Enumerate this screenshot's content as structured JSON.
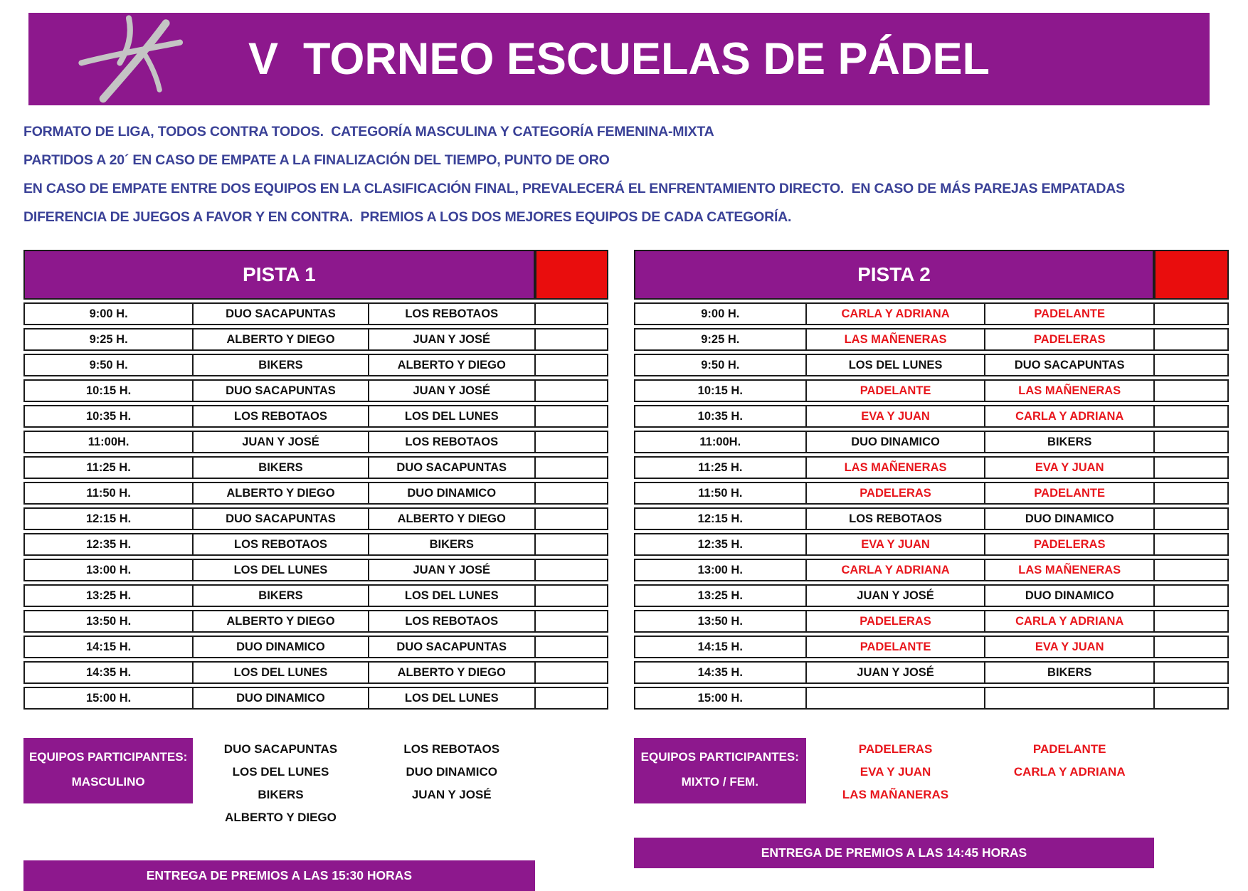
{
  "header": {
    "title": "V  TORNEO ESCUELAS DE PÁDEL",
    "logo_icon": "padel-player-logo"
  },
  "colors": {
    "banner_purple": "#8d188d",
    "marker_red": "#e90d0d",
    "rules_blue": "#3a4197",
    "team_red_text": "#e8161c",
    "team_black_text": "#111111",
    "logo_gray": "#c4c4c4"
  },
  "rules": [
    "FORMATO DE LIGA, TODOS CONTRA TODOS.  CATEGORÍA MASCULINA Y CATEGORÍA FEMENINA-MIXTA",
    "PARTIDOS A 20´ EN CASO DE EMPATE A LA FINALIZACIÓN DEL TIEMPO, PUNTO DE ORO",
    "EN CASO DE EMPATE ENTRE DOS EQUIPOS EN LA CLASIFICACIÓN FINAL, PREVALECERÁ EL ENFRENTAMIENTO DIRECTO.  EN CASO DE MÁS PAREJAS EMPATADAS",
    "DIFERENCIA DE JUEGOS A FAVOR Y EN CONTRA.  PREMIOS A LOS DOS MEJORES EQUIPOS DE CADA CATEGORÍA."
  ],
  "courts": [
    {
      "name": "PISTA 1",
      "rows": [
        {
          "time": "9:00 H.",
          "home": "DUO SACAPUNTAS",
          "away": "LOS REBOTAOS",
          "red": false
        },
        {
          "time": "9:25 H.",
          "home": "ALBERTO Y DIEGO",
          "away": "JUAN Y JOSÉ",
          "red": false
        },
        {
          "time": "9:50 H.",
          "home": "BIKERS",
          "away": "ALBERTO Y DIEGO",
          "red": false
        },
        {
          "time": "10:15 H.",
          "home": "DUO SACAPUNTAS",
          "away": "JUAN Y JOSÉ",
          "red": false
        },
        {
          "time": "10:35 H.",
          "home": "LOS REBOTAOS",
          "away": "LOS DEL LUNES",
          "red": false
        },
        {
          "time": "11:00H.",
          "home": "JUAN Y JOSÉ",
          "away": "LOS REBOTAOS",
          "red": false
        },
        {
          "time": "11:25 H.",
          "home": "BIKERS",
          "away": "DUO SACAPUNTAS",
          "red": false
        },
        {
          "time": "11:50 H.",
          "home": "ALBERTO Y DIEGO",
          "away": "DUO DINAMICO",
          "red": false
        },
        {
          "time": "12:15 H.",
          "home": "DUO SACAPUNTAS",
          "away": "ALBERTO Y DIEGO",
          "red": false
        },
        {
          "time": "12:35 H.",
          "home": "LOS REBOTAOS",
          "away": "BIKERS",
          "red": false
        },
        {
          "time": "13:00 H.",
          "home": "LOS DEL LUNES",
          "away": "JUAN Y JOSÉ",
          "red": false
        },
        {
          "time": "13:25 H.",
          "home": "BIKERS",
          "away": "LOS DEL LUNES",
          "red": false
        },
        {
          "time": "13:50 H.",
          "home": "ALBERTO Y DIEGO",
          "away": "LOS REBOTAOS",
          "red": false
        },
        {
          "time": "14:15 H.",
          "home": "DUO DINAMICO",
          "away": "DUO SACAPUNTAS",
          "red": false
        },
        {
          "time": "14:35 H.",
          "home": "LOS DEL LUNES",
          "away": "ALBERTO Y DIEGO",
          "red": false
        },
        {
          "time": "15:00 H.",
          "home": "DUO DINAMICO",
          "away": "LOS DEL LUNES",
          "red": false
        }
      ],
      "participants": {
        "label_line1": "EQUIPOS PARTICIPANTES:",
        "label_line2": "MASCULINO",
        "column1": [
          "DUO SACAPUNTAS",
          "LOS DEL LUNES",
          "BIKERS",
          "ALBERTO Y DIEGO"
        ],
        "column2": [
          "LOS REBOTAOS",
          "DUO DINAMICO",
          "JUAN Y JOSÉ"
        ],
        "text_color": "black"
      },
      "prize_banner": "ENTREGA DE PREMIOS A LAS 15:30 HORAS"
    },
    {
      "name": "PISTA 2",
      "rows": [
        {
          "time": "9:00 H.",
          "home": "CARLA Y ADRIANA",
          "away": "PADELANTE",
          "red": true
        },
        {
          "time": "9:25 H.",
          "home": "LAS MAÑENERAS",
          "away": "PADELERAS",
          "red": true
        },
        {
          "time": "9:50 H.",
          "home": "LOS DEL LUNES",
          "away": "DUO SACAPUNTAS",
          "red": false
        },
        {
          "time": "10:15 H.",
          "home": "PADELANTE",
          "away": "LAS MAÑENERAS",
          "red": true
        },
        {
          "time": "10:35 H.",
          "home": "EVA Y JUAN",
          "away": "CARLA Y ADRIANA",
          "red": true
        },
        {
          "time": "11:00H.",
          "home": "DUO DINAMICO",
          "away": "BIKERS",
          "red": false
        },
        {
          "time": "11:25 H.",
          "home": "LAS MAÑENERAS",
          "away": "EVA Y JUAN",
          "red": true
        },
        {
          "time": "11:50 H.",
          "home": "PADELERAS",
          "away": "PADELANTE",
          "red": true
        },
        {
          "time": "12:15 H.",
          "home": "LOS REBOTAOS",
          "away": "DUO DINAMICO",
          "red": false
        },
        {
          "time": "12:35 H.",
          "home": "EVA Y JUAN",
          "away": "PADELERAS",
          "red": true
        },
        {
          "time": "13:00 H.",
          "home": "CARLA Y ADRIANA",
          "away": "LAS MAÑENERAS",
          "red": true
        },
        {
          "time": "13:25 H.",
          "home": "JUAN Y JOSÉ",
          "away": "DUO DINAMICO",
          "red": false
        },
        {
          "time": "13:50 H.",
          "home": "PADELERAS",
          "away": "CARLA Y ADRIANA",
          "red": true
        },
        {
          "time": "14:15 H.",
          "home": "PADELANTE",
          "away": "EVA Y JUAN",
          "red": true
        },
        {
          "time": "14:35 H.",
          "home": "JUAN Y JOSÉ",
          "away": "BIKERS",
          "red": false
        },
        {
          "time": "15:00 H.",
          "home": "",
          "away": "",
          "red": false
        }
      ],
      "participants": {
        "label_line1": "EQUIPOS PARTICIPANTES:",
        "label_line2": "MIXTO / FEM.",
        "column1": [
          "PADELERAS",
          "EVA Y JUAN",
          "LAS MAÑANERAS"
        ],
        "column2": [
          "PADELANTE",
          "CARLA Y ADRIANA"
        ],
        "text_color": "red"
      },
      "prize_banner": "ENTREGA DE PREMIOS A LAS 14:45 HORAS"
    }
  ]
}
